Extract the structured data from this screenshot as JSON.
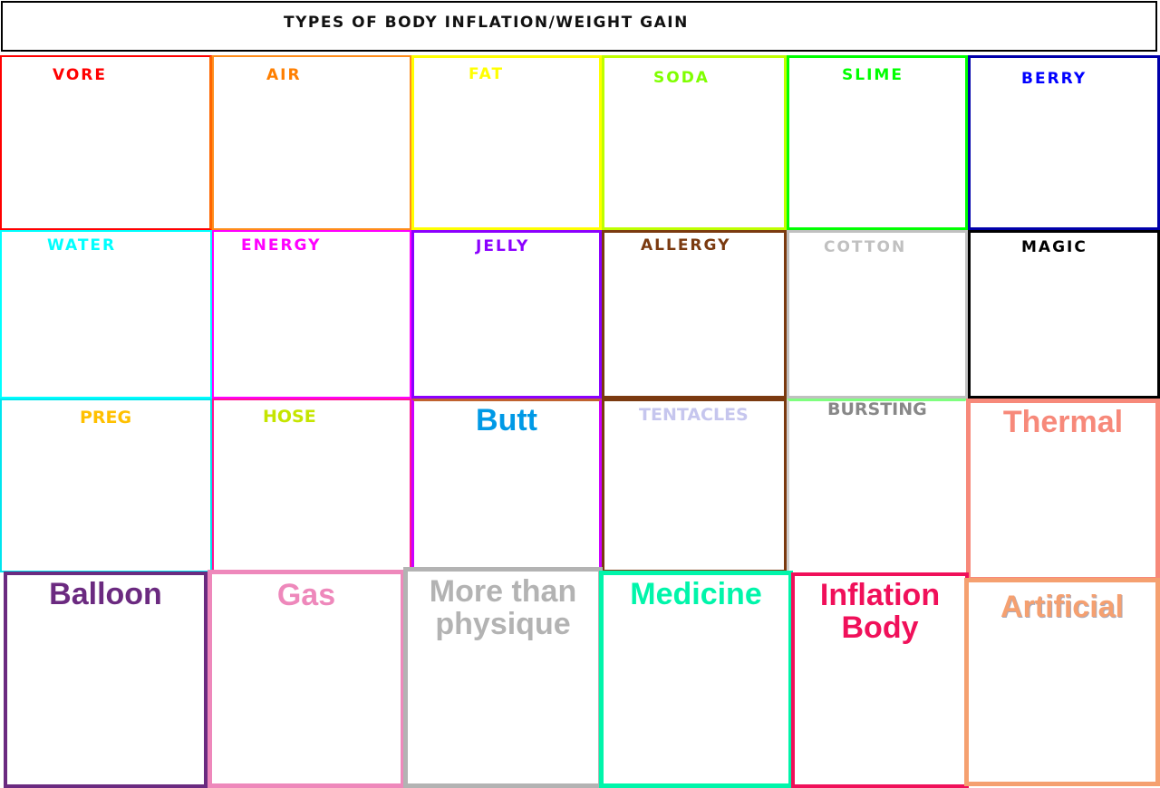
{
  "title": "TYPES OF BODY INFLATION/WEIGHT GAIN",
  "cells": [
    {
      "label": "VORE",
      "color": "#ff0000",
      "border": "#ff0000"
    },
    {
      "label": "AIR",
      "color": "#ff7f00",
      "border": "#ff7f00"
    },
    {
      "label": "FAT",
      "color": "#ffff00",
      "border": "#ffff00"
    },
    {
      "label": "SODA",
      "color": "#7fff00",
      "border": "#b5ff00"
    },
    {
      "label": "SLIME",
      "color": "#00ff00",
      "border": "#00ff00"
    },
    {
      "label": "BERRY",
      "color": "#0000ff",
      "border": "#0000b0"
    },
    {
      "label": "WATER",
      "color": "#00ffff",
      "border": "#00ffff"
    },
    {
      "label": "ENERGY",
      "color": "#ff00ff",
      "border": "#ff00ff"
    },
    {
      "label": "JELLY",
      "color": "#8b00ff",
      "border": "#8b00ff"
    },
    {
      "label": "ALLERGY",
      "color": "#7b3a10",
      "border": "#7b3a10"
    },
    {
      "label": "COTTON",
      "color": "#c0c0c0",
      "border": "#c0c0c0"
    },
    {
      "label": "MAGIC",
      "color": "#000000",
      "border": "#000000"
    },
    {
      "label": "PREG",
      "color": "#ffc000",
      "border": "#00e5ee"
    },
    {
      "label": "HOSE",
      "color": "#c5e500",
      "border": "#ff1493"
    },
    {
      "label": "Butt",
      "color": "#0099e6",
      "border": "#cc00ff"
    },
    {
      "label": "TENTACLES",
      "color": "#c6c6ee",
      "border": "#7b3a10"
    },
    {
      "label": "BURSTING",
      "color": "#888888",
      "border": "#7fff7f"
    },
    {
      "label": "Thermal",
      "color": "#f7897a",
      "border": "#f7897a"
    },
    {
      "label": "Balloon",
      "color": "#6b2a80",
      "border": "#6b2a80"
    },
    {
      "label": "Gas",
      "color": "#ee88bb",
      "border": "#ee88bb"
    },
    {
      "label": "More than physique",
      "color": "#b3b3b3",
      "border": "#b3b3b3"
    },
    {
      "label": "Medicine",
      "color": "#00f5aa",
      "border": "#00f5aa"
    },
    {
      "label": "Inflation Body",
      "color": "#f0105a",
      "border": "#f0105a"
    },
    {
      "label": "Artificial",
      "color": "#f5a070",
      "border": "#f5a070"
    }
  ]
}
